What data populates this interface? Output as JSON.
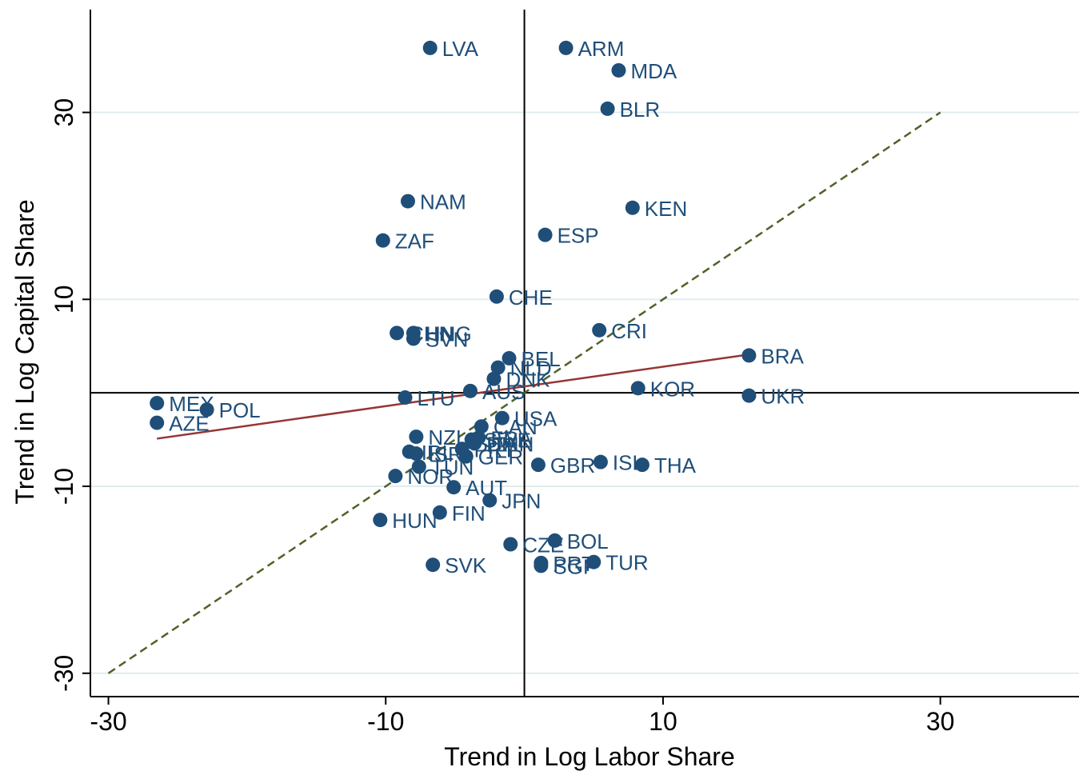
{
  "chart_data": {
    "type": "scatter",
    "xlabel": "Trend in Log Labor Share",
    "ylabel": "Trend in Log Capital Share",
    "xlim": [
      -31.3,
      40
    ],
    "ylim": [
      -32.5,
      41
    ],
    "xticks": [
      -30,
      -10,
      10,
      30
    ],
    "yticks": [
      -30,
      -10,
      10,
      30
    ],
    "xtick_labels": [
      "-30",
      "-10",
      "10",
      "30"
    ],
    "ytick_labels": [
      "-30",
      "-10",
      "10",
      "30"
    ],
    "grid": "horizontal",
    "reference_lines": {
      "x": 0,
      "y": 0
    },
    "colors": {
      "points": "#1f4e79",
      "labels": "#1f4e79",
      "fit_line": "#943634",
      "diagonal_line": "#4f6228",
      "grid": "#e2ebee",
      "axes": "#000000"
    },
    "points": [
      {
        "label": "LVA",
        "x": -6.8,
        "y": 36.9
      },
      {
        "label": "ARM",
        "x": 3.0,
        "y": 36.9
      },
      {
        "label": "MDA",
        "x": 6.8,
        "y": 34.5
      },
      {
        "label": "BLR",
        "x": 6.0,
        "y": 30.4
      },
      {
        "label": "NAM",
        "x": -8.4,
        "y": 20.5
      },
      {
        "label": "KEN",
        "x": 7.8,
        "y": 19.8
      },
      {
        "label": "ZAF",
        "x": -10.2,
        "y": 16.3
      },
      {
        "label": "ESP",
        "x": 1.5,
        "y": 16.9
      },
      {
        "label": "CHE",
        "x": -2.0,
        "y": 10.3
      },
      {
        "label": "CRI",
        "x": 5.4,
        "y": 6.7
      },
      {
        "label": "CHN",
        "x": -9.2,
        "y": 6.4
      },
      {
        "label": "HNG",
        "x": -8.0,
        "y": 6.4
      },
      {
        "label": "SVN",
        "x": -8.0,
        "y": 5.8
      },
      {
        "label": "BEL",
        "x": -1.1,
        "y": 3.7
      },
      {
        "label": "NLD",
        "x": -1.9,
        "y": 2.7
      },
      {
        "label": "BRA",
        "x": 16.2,
        "y": 4.0
      },
      {
        "label": "DNK",
        "x": -2.2,
        "y": 1.5
      },
      {
        "label": "KOR",
        "x": 8.2,
        "y": 0.5
      },
      {
        "label": "AUS",
        "x": -3.9,
        "y": 0.2
      },
      {
        "label": "LTU",
        "x": -8.6,
        "y": -0.5
      },
      {
        "label": "UKR",
        "x": 16.2,
        "y": -0.3
      },
      {
        "label": "MEX",
        "x": -26.5,
        "y": -1.1
      },
      {
        "label": "POL",
        "x": -22.9,
        "y": -1.8
      },
      {
        "label": "AZE",
        "x": -26.5,
        "y": -3.2
      },
      {
        "label": "USA",
        "x": -1.6,
        "y": -2.7
      },
      {
        "label": "CAN",
        "x": -3.1,
        "y": -3.6
      },
      {
        "label": "NZL",
        "x": -7.8,
        "y": -4.7
      },
      {
        "label": "FRA",
        "x": -3.3,
        "y": -4.8
      },
      {
        "label": "SWE",
        "x": -3.8,
        "y": -5.0
      },
      {
        "label": "ITA",
        "x": -3.6,
        "y": -5.4
      },
      {
        "label": "DMN",
        "x": -3.6,
        "y": -5.4
      },
      {
        "label": "IRL",
        "x": -8.3,
        "y": -6.3
      },
      {
        "label": "ISR",
        "x": -7.8,
        "y": -6.5
      },
      {
        "label": "PRT",
        "x": -4.5,
        "y": -6.0
      },
      {
        "label": "GER",
        "x": -4.2,
        "y": -6.8
      },
      {
        "label": "TUN",
        "x": -7.6,
        "y": -7.9
      },
      {
        "label": "GBR",
        "x": 1.0,
        "y": -7.7
      },
      {
        "label": "ISL",
        "x": 5.5,
        "y": -7.4
      },
      {
        "label": "THA",
        "x": 8.5,
        "y": -7.7
      },
      {
        "label": "NOR",
        "x": -9.3,
        "y": -8.9
      },
      {
        "label": "AUT",
        "x": -5.1,
        "y": -10.1
      },
      {
        "label": "JPN",
        "x": -2.5,
        "y": -11.5
      },
      {
        "label": "FIN",
        "x": -6.1,
        "y": -12.8
      },
      {
        "label": "HUN",
        "x": -10.4,
        "y": -13.6
      },
      {
        "label": "BOL",
        "x": 2.2,
        "y": -15.8
      },
      {
        "label": "CZE",
        "x": -1.0,
        "y": -16.2
      },
      {
        "label": "PRT",
        "x": 1.2,
        "y": -18.2
      },
      {
        "label": "SGP",
        "x": 1.2,
        "y": -18.5
      },
      {
        "label": "TUR",
        "x": 5.0,
        "y": -18.1
      },
      {
        "label": "SVK",
        "x": -6.6,
        "y": -18.4
      }
    ],
    "fit_line": {
      "x": [
        -26.5,
        16.2
      ],
      "y": [
        -4.9,
        4.1
      ]
    },
    "diagonal_line": {
      "x": [
        -30,
        30
      ],
      "y": [
        -30,
        30
      ]
    }
  }
}
